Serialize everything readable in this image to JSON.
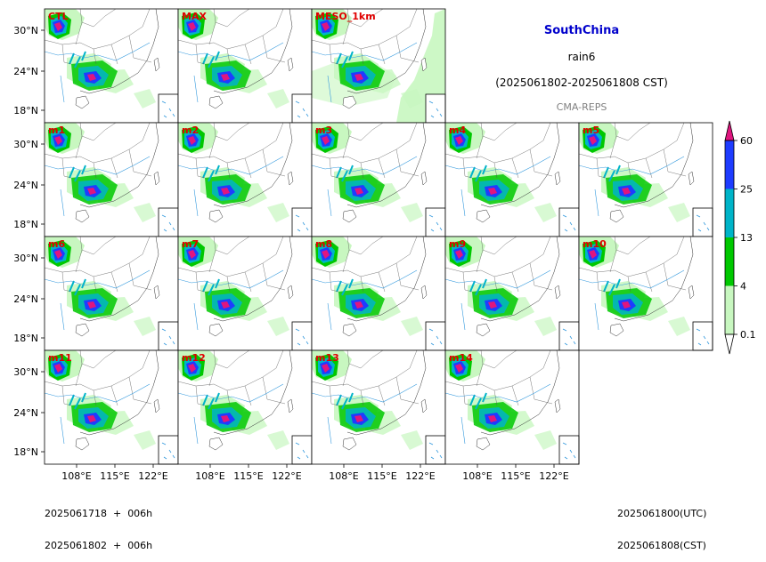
{
  "header": {
    "region": "SouthChina",
    "variable": "rain6",
    "period": "(2025061802-2025061808 CST)",
    "source": "CMA-REPS",
    "region_color": "#0000cc",
    "source_color": "#808080"
  },
  "panels": [
    {
      "label": "CTL"
    },
    {
      "label": "MAX"
    },
    {
      "label": "MESO_1km"
    },
    {
      "label": "m1"
    },
    {
      "label": "m2"
    },
    {
      "label": "m3"
    },
    {
      "label": "m4"
    },
    {
      "label": "m5"
    },
    {
      "label": "m6"
    },
    {
      "label": "m7"
    },
    {
      "label": "m8"
    },
    {
      "label": "m9"
    },
    {
      "label": "m10"
    },
    {
      "label": "m11"
    },
    {
      "label": "m12"
    },
    {
      "label": "m13"
    },
    {
      "label": "m14"
    }
  ],
  "panel_label_color": "#e00000",
  "axes": {
    "lat_ticks": [
      "30°N",
      "24°N",
      "18°N"
    ],
    "lon_ticks": [
      "108°E",
      "115°E",
      "122°E"
    ]
  },
  "colorbar": {
    "ticks": [
      "60",
      "25",
      "13",
      "4",
      "0.1"
    ],
    "colors": [
      "#e0157f",
      "#1e3cff",
      "#00b4c8",
      "#00c800",
      "#c8f7c0"
    ],
    "extend_max_color": "#e0157f",
    "extend_min_color": "#ffffff"
  },
  "footer": {
    "left_line1": "2025061718  +  006h",
    "left_line2": "2025061802  +  006h",
    "right_line1": "2025061800(UTC)",
    "right_line2": "2025061808(CST)"
  },
  "map_colors": {
    "land_rain_light": "#c8f7c0",
    "rain_green": "#00c800",
    "rain_teal": "#00b4c8",
    "rain_blue": "#1e3cff",
    "rain_magenta": "#e0157f",
    "border": "#555555",
    "river": "#3399dd"
  }
}
